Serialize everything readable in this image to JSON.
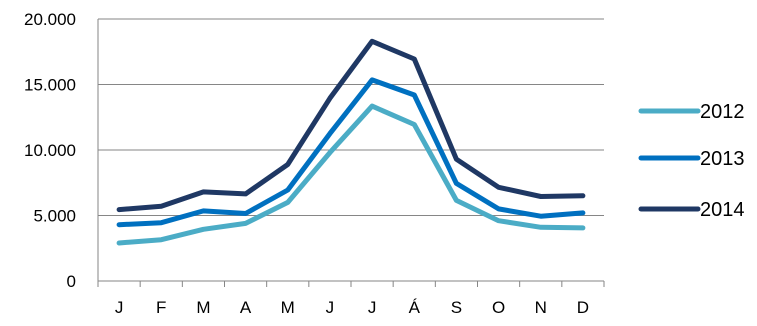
{
  "chart_data": {
    "type": "line",
    "title": "",
    "xlabel": "",
    "ylabel": "",
    "categories": [
      "J",
      "F",
      "M",
      "A",
      "M",
      "J",
      "J",
      "Á",
      "S",
      "O",
      "N",
      "D"
    ],
    "ylim": [
      0,
      20000
    ],
    "yticks": [
      0,
      5000,
      10000,
      15000,
      20000
    ],
    "ytick_labels": [
      "0",
      "5.000",
      "10.000",
      "15.000",
      "20.000"
    ],
    "grid": "horizontal",
    "legend_position": "right",
    "series": [
      {
        "name": "2012",
        "color": "#4BACC6",
        "values": [
          2900,
          3150,
          3950,
          4400,
          6000,
          9800,
          13350,
          11950,
          6150,
          4600,
          4100,
          4050
        ]
      },
      {
        "name": "2013",
        "color": "#0070C0",
        "values": [
          4300,
          4450,
          5350,
          5150,
          6950,
          11250,
          15350,
          14200,
          7450,
          5500,
          4950,
          5200
        ]
      },
      {
        "name": "2014",
        "color": "#1F3864",
        "values": [
          5450,
          5700,
          6800,
          6650,
          8900,
          13950,
          18300,
          16950,
          9300,
          7150,
          6450,
          6500
        ]
      }
    ]
  }
}
